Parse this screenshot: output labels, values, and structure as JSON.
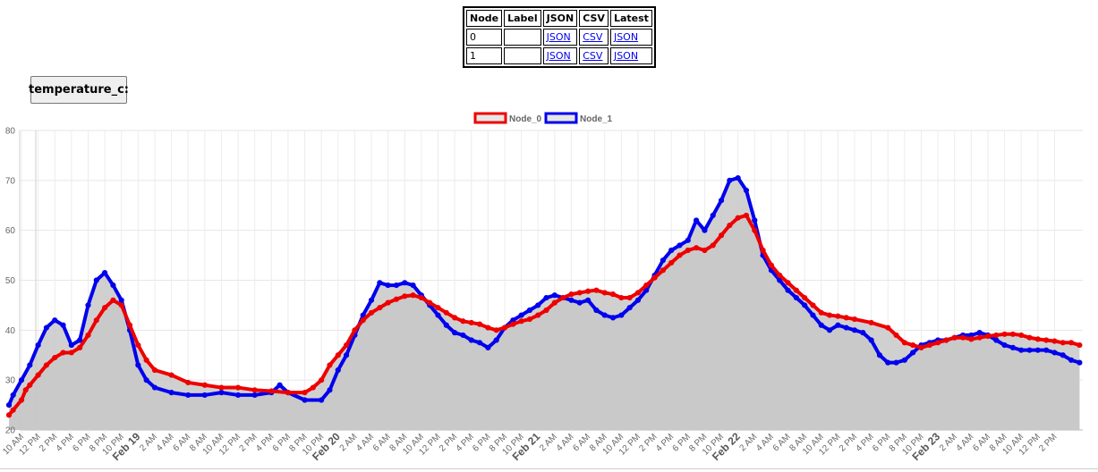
{
  "table": {
    "headers": [
      "Node",
      "Label",
      "JSON",
      "CSV",
      "Latest"
    ],
    "rows": [
      {
        "node": "0",
        "label": "",
        "json": "JSON",
        "csv": "CSV",
        "latest": "JSON"
      },
      {
        "node": "1",
        "label": "",
        "json": "JSON",
        "csv": "CSV",
        "latest": "JSON"
      }
    ]
  },
  "sensor_button": {
    "label": "temperature_c"
  },
  "sensor_button_suffix": ":",
  "chart_data": {
    "type": "area",
    "x_start_label": "10 AM Feb 18",
    "x_unit": "hours",
    "x_tick_labels": [
      "10 AM",
      "12 PM",
      "2 PM",
      "4 PM",
      "6 PM",
      "8 PM",
      "10 PM",
      "Feb 19",
      "2 AM",
      "4 AM",
      "6 AM",
      "8 AM",
      "10 AM",
      "12 PM",
      "2 PM",
      "4 PM",
      "6 PM",
      "8 PM",
      "10 PM",
      "Feb 20",
      "2 AM",
      "4 AM",
      "6 AM",
      "8 AM",
      "10 AM",
      "12 PM",
      "2 PM",
      "4 PM",
      "6 PM",
      "8 PM",
      "10 PM",
      "Feb 21",
      "2 AM",
      "4 AM",
      "6 AM",
      "8 AM",
      "10 AM",
      "12 PM",
      "2 PM",
      "4 PM",
      "6 PM",
      "8 PM",
      "10 PM",
      "Feb 22",
      "2 AM",
      "4 AM",
      "6 AM",
      "8 AM",
      "10 AM",
      "12 PM",
      "2 PM",
      "4 PM",
      "6 PM",
      "8 PM",
      "10 PM",
      "Feb 23",
      "2 AM",
      "4 AM",
      "6 AM",
      "8 AM",
      "10 AM",
      "12 PM",
      "2 PM"
    ],
    "bold_tick_labels": [
      "Feb 19",
      "Feb 20",
      "Feb 21",
      "Feb 22",
      "Feb 23"
    ],
    "y_ticks": [
      20,
      30,
      40,
      50,
      60,
      70,
      80
    ],
    "ylim": [
      20,
      80
    ],
    "xlim": [
      -1.5,
      128
    ],
    "grid": true,
    "legend_position": "top-center",
    "series": [
      {
        "name": "Node_0",
        "color": "#ee0000",
        "fill": "rgba(200,200,200,0.85)",
        "points": [
          [
            -1.5,
            23
          ],
          [
            -1,
            24
          ],
          [
            0,
            26
          ],
          [
            0.5,
            28
          ],
          [
            1,
            29
          ],
          [
            2,
            31
          ],
          [
            3,
            33
          ],
          [
            4,
            34.5
          ],
          [
            5,
            35.5
          ],
          [
            6,
            35.5
          ],
          [
            7,
            36.5
          ],
          [
            8,
            39
          ],
          [
            9,
            42
          ],
          [
            10,
            44.5
          ],
          [
            11,
            46
          ],
          [
            12,
            45
          ],
          [
            13,
            41
          ],
          [
            14,
            37
          ],
          [
            15,
            34
          ],
          [
            16,
            32
          ],
          [
            18,
            31
          ],
          [
            20,
            29.5
          ],
          [
            22,
            29
          ],
          [
            24,
            28.5
          ],
          [
            26,
            28.5
          ],
          [
            28,
            28
          ],
          [
            30,
            27.8
          ],
          [
            32,
            27.5
          ],
          [
            34,
            27.5
          ],
          [
            35,
            28.5
          ],
          [
            36,
            30
          ],
          [
            37,
            33
          ],
          [
            38,
            35
          ],
          [
            39,
            37
          ],
          [
            40,
            40
          ],
          [
            41,
            42
          ],
          [
            42,
            43.5
          ],
          [
            43,
            44.5
          ],
          [
            44,
            45.5
          ],
          [
            45,
            46.2
          ],
          [
            46,
            46.8
          ],
          [
            47,
            47
          ],
          [
            48,
            46.5
          ],
          [
            49,
            45.5
          ],
          [
            50,
            44.5
          ],
          [
            51,
            43.5
          ],
          [
            52,
            42.5
          ],
          [
            53,
            41.8
          ],
          [
            54,
            41.5
          ],
          [
            55,
            41.2
          ],
          [
            56,
            40.5
          ],
          [
            57,
            40
          ],
          [
            58,
            40.5
          ],
          [
            59,
            41.2
          ],
          [
            60,
            41.8
          ],
          [
            61,
            42.2
          ],
          [
            62,
            43
          ],
          [
            63,
            44
          ],
          [
            64,
            45.5
          ],
          [
            65,
            46.5
          ],
          [
            66,
            47.2
          ],
          [
            67,
            47.5
          ],
          [
            68,
            47.8
          ],
          [
            69,
            48
          ],
          [
            70,
            47.5
          ],
          [
            71,
            47.2
          ],
          [
            72,
            46.5
          ],
          [
            73,
            46.5
          ],
          [
            74,
            47.5
          ],
          [
            75,
            49
          ],
          [
            76,
            50.5
          ],
          [
            77,
            52
          ],
          [
            78,
            53.5
          ],
          [
            79,
            55
          ],
          [
            80,
            56
          ],
          [
            81,
            56.5
          ],
          [
            82,
            56
          ],
          [
            83,
            57
          ],
          [
            84,
            59
          ],
          [
            85,
            61
          ],
          [
            86,
            62.5
          ],
          [
            87,
            63
          ],
          [
            88,
            60
          ],
          [
            89,
            56
          ],
          [
            90,
            53
          ],
          [
            91,
            51
          ],
          [
            92,
            49.5
          ],
          [
            93,
            48
          ],
          [
            94,
            46.5
          ],
          [
            95,
            45
          ],
          [
            96,
            43.5
          ],
          [
            97,
            43
          ],
          [
            98,
            42.8
          ],
          [
            99,
            42.5
          ],
          [
            100,
            42.2
          ],
          [
            102,
            41.5
          ],
          [
            104,
            40.5
          ],
          [
            105,
            39
          ],
          [
            106,
            37.5
          ],
          [
            107,
            37
          ],
          [
            108,
            36.5
          ],
          [
            109,
            37
          ],
          [
            110,
            37.5
          ],
          [
            111,
            38
          ],
          [
            112,
            38.5
          ],
          [
            113,
            38.5
          ],
          [
            114,
            38.2
          ],
          [
            115,
            38.5
          ],
          [
            116,
            38.8
          ],
          [
            117,
            39
          ],
          [
            118,
            39.2
          ],
          [
            119,
            39.2
          ],
          [
            120,
            39
          ],
          [
            121,
            38.5
          ],
          [
            122,
            38.2
          ],
          [
            123,
            38
          ],
          [
            124,
            37.8
          ],
          [
            125,
            37.5
          ],
          [
            126,
            37.5
          ],
          [
            127,
            37
          ]
        ]
      },
      {
        "name": "Node_1",
        "color": "#0000ee",
        "fill": "rgba(200,200,200,0.85)",
        "points": [
          [
            -1.5,
            25
          ],
          [
            -1,
            27
          ],
          [
            0,
            30
          ],
          [
            1,
            33
          ],
          [
            2,
            37
          ],
          [
            3,
            40.5
          ],
          [
            4,
            42
          ],
          [
            5,
            41
          ],
          [
            6,
            37
          ],
          [
            7,
            38
          ],
          [
            8,
            45
          ],
          [
            9,
            50
          ],
          [
            10,
            51.5
          ],
          [
            11,
            49
          ],
          [
            12,
            46
          ],
          [
            13,
            40
          ],
          [
            14,
            33
          ],
          [
            15,
            30
          ],
          [
            16,
            28.5
          ],
          [
            18,
            27.5
          ],
          [
            20,
            27
          ],
          [
            22,
            27
          ],
          [
            24,
            27.5
          ],
          [
            26,
            27
          ],
          [
            28,
            27
          ],
          [
            30,
            27.5
          ],
          [
            31,
            29
          ],
          [
            32,
            27.5
          ],
          [
            34,
            26
          ],
          [
            36,
            26
          ],
          [
            37,
            28
          ],
          [
            38,
            32
          ],
          [
            39,
            35
          ],
          [
            40,
            39
          ],
          [
            41,
            43
          ],
          [
            42,
            46
          ],
          [
            43,
            49.5
          ],
          [
            44,
            49
          ],
          [
            45,
            49
          ],
          [
            46,
            49.5
          ],
          [
            47,
            49
          ],
          [
            48,
            47
          ],
          [
            49,
            45
          ],
          [
            50,
            43
          ],
          [
            51,
            41
          ],
          [
            52,
            39.5
          ],
          [
            53,
            39
          ],
          [
            54,
            38
          ],
          [
            55,
            37.5
          ],
          [
            56,
            36.5
          ],
          [
            57,
            38
          ],
          [
            58,
            40.5
          ],
          [
            59,
            42
          ],
          [
            60,
            43
          ],
          [
            61,
            44
          ],
          [
            62,
            45
          ],
          [
            63,
            46.5
          ],
          [
            64,
            47
          ],
          [
            65,
            46.5
          ],
          [
            66,
            46
          ],
          [
            67,
            45.5
          ],
          [
            68,
            46
          ],
          [
            69,
            44
          ],
          [
            70,
            43
          ],
          [
            71,
            42.5
          ],
          [
            72,
            43
          ],
          [
            73,
            44.5
          ],
          [
            74,
            46
          ],
          [
            75,
            48
          ],
          [
            76,
            51
          ],
          [
            77,
            54
          ],
          [
            78,
            56
          ],
          [
            79,
            57
          ],
          [
            80,
            58
          ],
          [
            81,
            62
          ],
          [
            82,
            60
          ],
          [
            83,
            63
          ],
          [
            84,
            66
          ],
          [
            85,
            70
          ],
          [
            86,
            70.5
          ],
          [
            87,
            68
          ],
          [
            88,
            62
          ],
          [
            89,
            55
          ],
          [
            90,
            52
          ],
          [
            91,
            50
          ],
          [
            92,
            48
          ],
          [
            93,
            46.5
          ],
          [
            94,
            45
          ],
          [
            95,
            43
          ],
          [
            96,
            41
          ],
          [
            97,
            40
          ],
          [
            98,
            41
          ],
          [
            99,
            40.5
          ],
          [
            100,
            40
          ],
          [
            101,
            39.5
          ],
          [
            102,
            38
          ],
          [
            103,
            35
          ],
          [
            104,
            33.5
          ],
          [
            105,
            33.5
          ],
          [
            106,
            34
          ],
          [
            107,
            35.5
          ],
          [
            108,
            37
          ],
          [
            109,
            37.5
          ],
          [
            110,
            38
          ],
          [
            111,
            38
          ],
          [
            112,
            38.5
          ],
          [
            113,
            39
          ],
          [
            114,
            39
          ],
          [
            115,
            39.5
          ],
          [
            116,
            39
          ],
          [
            117,
            38
          ],
          [
            118,
            37
          ],
          [
            119,
            36.5
          ],
          [
            120,
            36
          ],
          [
            121,
            36
          ],
          [
            122,
            36
          ],
          [
            123,
            36
          ],
          [
            124,
            35.5
          ],
          [
            125,
            35
          ],
          [
            126,
            34
          ],
          [
            127,
            33.5
          ]
        ]
      }
    ]
  }
}
